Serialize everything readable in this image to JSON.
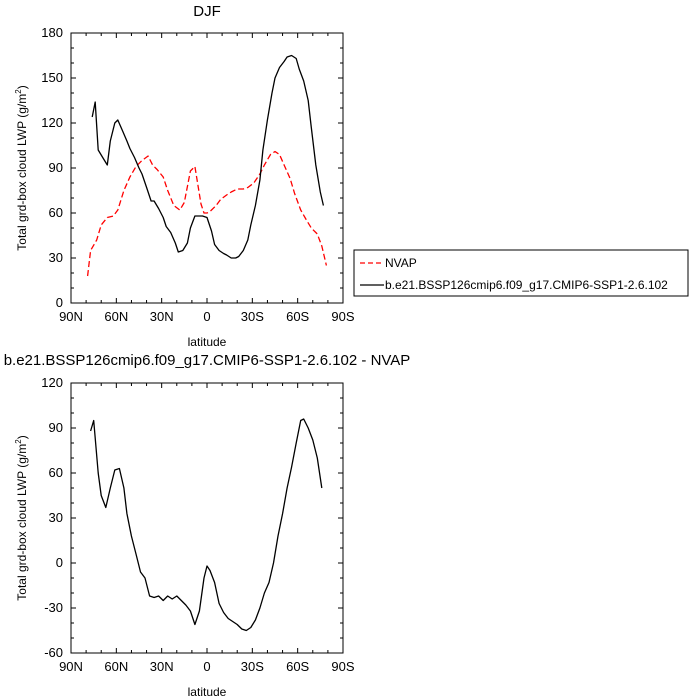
{
  "chart_data": [
    {
      "type": "line",
      "title": "DJF",
      "xlabel": "latitude",
      "ylabel": "Total grd-box cloud LWP (g/m",
      "ylabel_sup": "2",
      "ylabel_end": ")",
      "xlim": [
        90,
        -90
      ],
      "ylim": [
        0,
        180
      ],
      "xticks": [
        90,
        60,
        30,
        0,
        -30,
        -60,
        -90
      ],
      "xtick_labels": [
        "90N",
        "60N",
        "30N",
        "0",
        "30S",
        "60S",
        "90S"
      ],
      "yticks": [
        0,
        30,
        60,
        90,
        120,
        150,
        180
      ],
      "ytick_labels": [
        "0",
        "30",
        "60",
        "90",
        "120",
        "150",
        "180"
      ],
      "legend_position": "right",
      "series": [
        {
          "name": "NVAP",
          "color": "#ff0000",
          "dash": true,
          "x": [
            79,
            77,
            73,
            70,
            66,
            62,
            59,
            55,
            51,
            47,
            43,
            39,
            36,
            33,
            29,
            26,
            22,
            18,
            15,
            11,
            8,
            4,
            2,
            0,
            -2,
            -6,
            -9,
            -13,
            -16,
            -20,
            -24,
            -27,
            -31,
            -35,
            -38,
            -42,
            -45,
            -48,
            -51,
            -55,
            -58,
            -62,
            -66,
            -69,
            -73,
            -76,
            -79
          ],
          "y": [
            18,
            35,
            42,
            52,
            57,
            58,
            62,
            75,
            84,
            91,
            95,
            98,
            92,
            89,
            84,
            75,
            65,
            62,
            67,
            88,
            91,
            66,
            60,
            60,
            61,
            65,
            69,
            72,
            74,
            76,
            76,
            77,
            80,
            86,
            92,
            99,
            101,
            99,
            92,
            83,
            73,
            62,
            55,
            50,
            46,
            38,
            25
          ]
        },
        {
          "name": "b.e21.BSSP126cmip6.f09_g17.CMIP6-SSP1-2.6.102",
          "color": "#000000",
          "dash": false,
          "x": [
            76,
            74,
            72,
            69,
            66,
            64,
            61,
            59,
            56,
            53,
            51,
            48,
            45,
            43,
            40,
            37,
            35,
            32,
            29,
            27,
            24,
            21,
            19,
            16,
            13,
            11,
            8,
            5,
            3,
            0,
            -3,
            -5,
            -8,
            -11,
            -13,
            -16,
            -19,
            -21,
            -24,
            -27,
            -29,
            -32,
            -35,
            -37,
            -40,
            -43,
            -45,
            -48,
            -51,
            -53,
            -56,
            -59,
            -61,
            -64,
            -67,
            -69,
            -72,
            -75,
            -77
          ],
          "y": [
            124,
            134,
            102,
            97,
            92,
            108,
            120,
            122,
            115,
            108,
            103,
            97,
            90,
            86,
            77,
            68,
            68,
            63,
            57,
            51,
            47,
            40,
            34,
            35,
            40,
            50,
            58,
            58,
            58,
            57,
            48,
            39,
            35,
            33,
            32,
            30,
            30,
            31,
            35,
            42,
            52,
            65,
            82,
            102,
            122,
            140,
            150,
            157,
            161,
            164,
            165,
            163,
            156,
            148,
            135,
            117,
            92,
            74,
            65
          ]
        }
      ]
    },
    {
      "type": "line",
      "title": "b.e21.BSSP126cmip6.f09_g17.CMIP6-SSP1-2.6.102 - NVAP",
      "xlabel": "latitude",
      "ylabel": "Total grd-box cloud LWP (g/m",
      "ylabel_sup": "2",
      "ylabel_end": ")",
      "xlim": [
        90,
        -90
      ],
      "ylim": [
        -60,
        120
      ],
      "xticks": [
        90,
        60,
        30,
        0,
        -30,
        -60,
        -90
      ],
      "xtick_labels": [
        "90N",
        "60N",
        "30N",
        "0",
        "30S",
        "60S",
        "90S"
      ],
      "yticks": [
        -60,
        -30,
        0,
        30,
        60,
        90,
        120
      ],
      "ytick_labels": [
        "-60",
        "-30",
        "0",
        "30",
        "60",
        "90",
        "120"
      ],
      "series": [
        {
          "color": "#000000",
          "dash": false,
          "x": [
            77,
            75,
            72,
            70,
            67,
            64,
            61,
            58,
            55,
            53,
            50,
            47,
            44,
            41,
            38,
            35,
            32,
            29,
            26,
            23,
            20,
            17,
            14,
            11,
            8,
            5,
            2,
            0,
            -2,
            -5,
            -8,
            -11,
            -14,
            -17,
            -20,
            -23,
            -26,
            -29,
            -32,
            -35,
            -38,
            -41,
            -44,
            -47,
            -50,
            -53,
            -56,
            -59,
            -62,
            -64,
            -67,
            -70,
            -73,
            -76
          ],
          "y": [
            88,
            95,
            60,
            45,
            37,
            50,
            62,
            63,
            50,
            33,
            18,
            6,
            -6,
            -10,
            -22,
            -23,
            -22,
            -25,
            -22,
            -24,
            -22,
            -25,
            -28,
            -32,
            -41,
            -32,
            -10,
            -2,
            -5,
            -13,
            -27,
            -33,
            -37,
            -39,
            -41,
            -44,
            -45,
            -43,
            -38,
            -30,
            -20,
            -13,
            0,
            18,
            33,
            50,
            64,
            80,
            95,
            96,
            90,
            82,
            70,
            50
          ]
        }
      ]
    }
  ]
}
